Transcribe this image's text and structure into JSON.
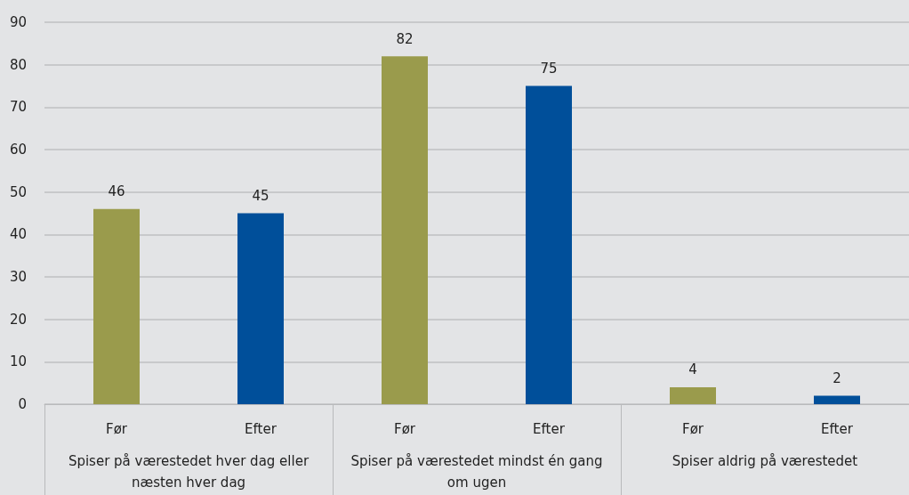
{
  "chart_data": {
    "type": "bar",
    "categories": [
      "Før",
      "Efter",
      "Før",
      "Efter",
      "Før",
      "Efter"
    ],
    "values": [
      46,
      45,
      82,
      75,
      4,
      2
    ],
    "colors": [
      "#9a9b4c",
      "#004f9a",
      "#9a9b4c",
      "#004f9a",
      "#9a9b4c",
      "#004f9a"
    ],
    "ylim": [
      0,
      90
    ],
    "yticks": [
      0,
      10,
      20,
      30,
      40,
      50,
      60,
      70,
      80,
      90
    ],
    "grid": "y",
    "data_labels": true,
    "annotations": [
      "Spiser på værestedet hver dag eller næsten hver dag",
      "Spiser på værestedet mindst én gang om ugen",
      "Spiser aldrig på værestedet"
    ]
  }
}
